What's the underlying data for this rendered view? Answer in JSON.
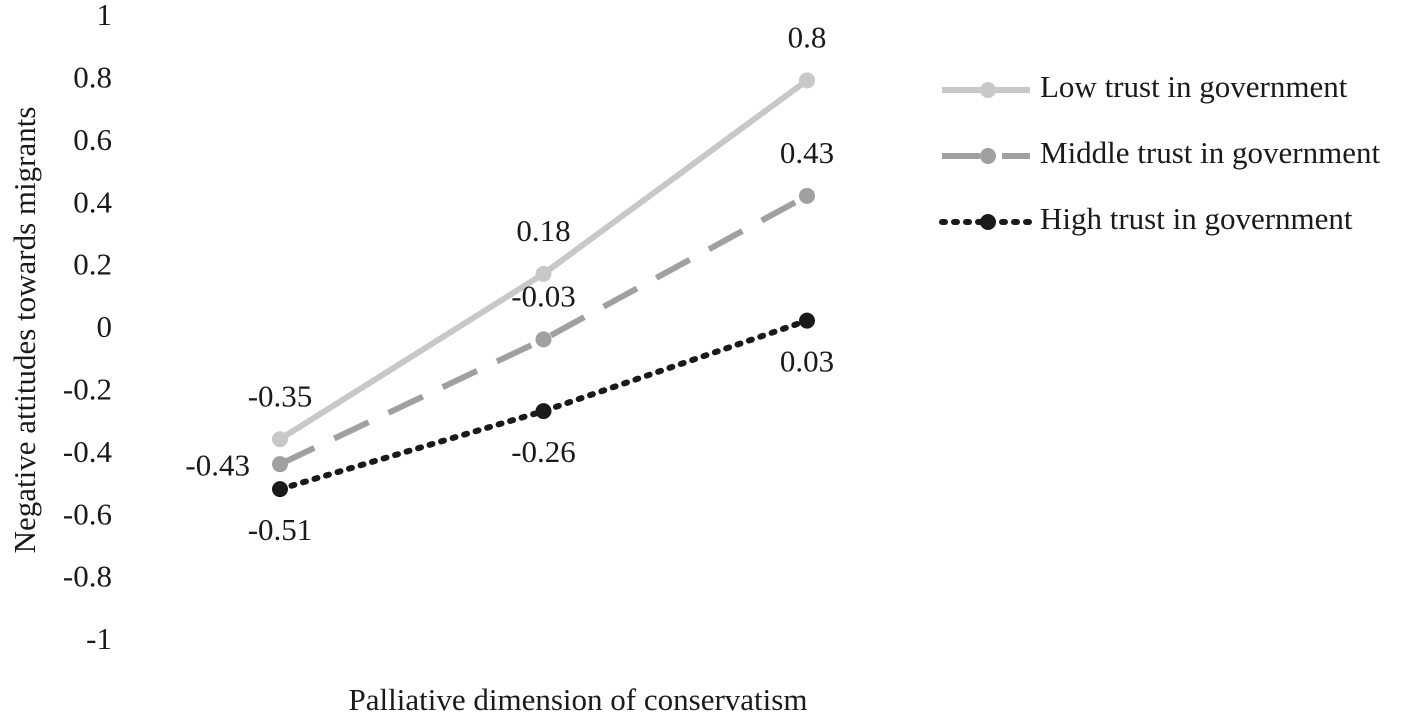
{
  "chart_data": {
    "type": "line",
    "x_label": "Palliative dimension of conservatism",
    "y_label": "Negative attitudes towards migrants",
    "categories": [
      null,
      null,
      null
    ],
    "series": [
      {
        "name": "Low trust in government",
        "color": "#c8c8c8",
        "dash": "solid",
        "values": [
          -0.35,
          0.18,
          0.8
        ]
      },
      {
        "name": "Middle trust in government",
        "color": "#a0a0a0",
        "dash": "dashed",
        "values": [
          -0.43,
          -0.03,
          0.43
        ]
      },
      {
        "name": "High trust in government",
        "color": "#1a1a1a",
        "dash": "dotted",
        "values": [
          -0.51,
          -0.26,
          0.03
        ]
      }
    ],
    "ylim": [
      -1,
      1
    ],
    "yticks": [
      -1,
      -0.8,
      -0.6,
      -0.4,
      -0.2,
      0,
      0.2,
      0.4,
      0.6,
      0.8,
      1
    ],
    "grid": false,
    "data_labels": true,
    "legend": "right"
  }
}
